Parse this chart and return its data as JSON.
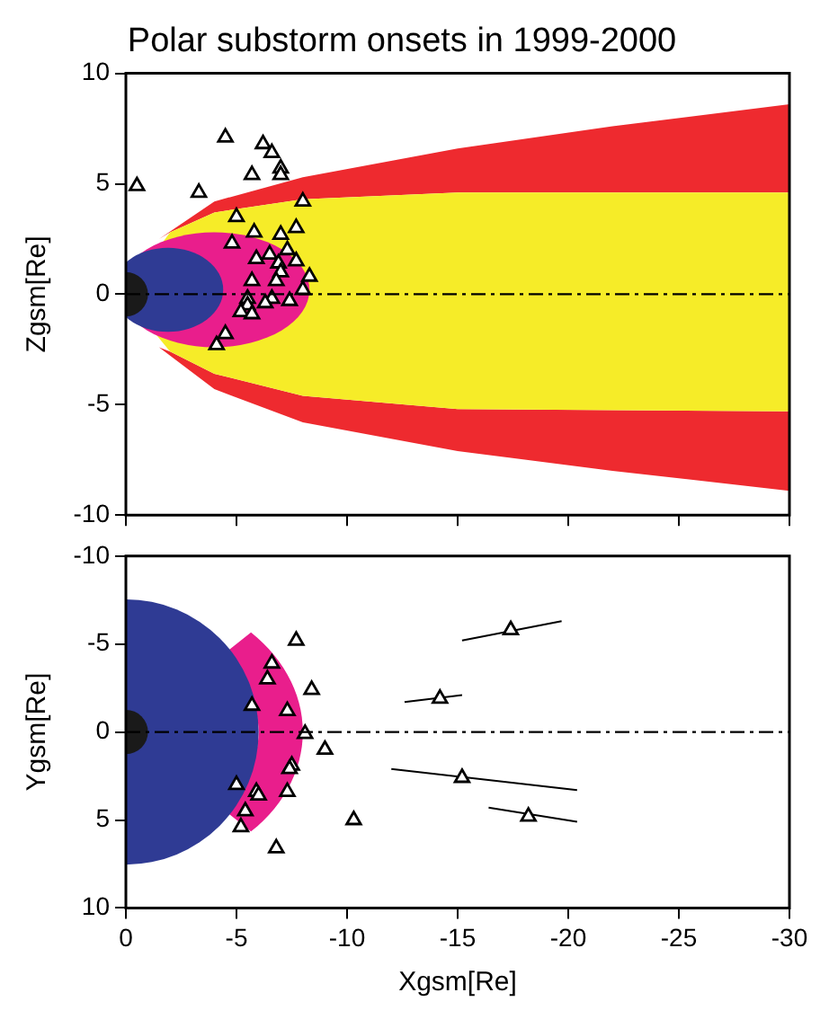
{
  "chart_data": [
    {
      "type": "scatter",
      "title": "Polar substorm onsets in 1999-2000",
      "ylabel": "Zgsm[Re]",
      "color": "#000000",
      "marker": "triangle",
      "x": [
        -0.5,
        -4.5,
        -6.2,
        -6.6,
        -7.0,
        -7.0,
        -5.7,
        -3.3,
        -8.0,
        -5.0,
        -5.8,
        -7.7,
        -7.0,
        -4.8,
        -7.3,
        -6.5,
        -5.9,
        -6.9,
        -7.7,
        -7.0,
        -8.3,
        -6.8,
        -5.7,
        -8.0,
        -6.6,
        -7.4,
        -6.3,
        -5.5,
        -5.5,
        -5.2,
        -5.7,
        -4.5,
        -4.1
      ],
      "values": [
        4.9,
        7.1,
        6.8,
        6.4,
        5.7,
        5.4,
        5.4,
        4.6,
        4.2,
        3.5,
        2.8,
        3.0,
        2.7,
        2.3,
        2.0,
        1.8,
        1.6,
        1.4,
        1.5,
        1.0,
        0.8,
        0.6,
        0.6,
        0.2,
        -0.2,
        -0.3,
        -0.4,
        -0.2,
        -0.5,
        -0.8,
        -0.9,
        -1.8,
        -2.3
      ],
      "xlim": [
        0,
        -30
      ],
      "xticks": [
        0,
        -5,
        -10,
        -15,
        -20,
        -25,
        -30
      ],
      "ylim": [
        -10,
        10
      ],
      "yticks": [
        -10,
        -5,
        0,
        5,
        10
      ],
      "tick_labels": "y",
      "ref_lines": [
        {
          "axis": "y",
          "value": 0
        }
      ]
    },
    {
      "type": "scatter",
      "xlabel": "Xgsm[Re]",
      "ylabel": "Ygsm[Re]",
      "marker": "triangle",
      "series": [
        {
          "type": "scatter",
          "color": "#000000",
          "x": [
            -7.7,
            -6.6,
            -6.4,
            -8.4,
            -5.7,
            -7.3,
            -8.1,
            -9.0,
            -7.5,
            -7.4,
            -5.0,
            -5.9,
            -6.0,
            -7.3,
            -5.4,
            -5.2,
            -6.8,
            -10.3,
            -14.2,
            -17.4,
            -15.2,
            -18.2
          ],
          "values": [
            -5.2,
            -3.9,
            -3.0,
            -2.4,
            -1.5,
            -1.2,
            0.1,
            1.0,
            1.9,
            2.1,
            3.0,
            3.4,
            3.6,
            3.4,
            4.5,
            5.4,
            6.6,
            5.0,
            -1.9,
            -5.8,
            2.6,
            4.8
          ]
        },
        {
          "type": "line",
          "color": "#000000",
          "marker": "none",
          "x": [
            -15.2,
            -19.7
          ],
          "values": [
            -5.2,
            -6.3
          ]
        },
        {
          "type": "line",
          "color": "#000000",
          "marker": "none",
          "x": [
            -12.6,
            -15.2
          ],
          "values": [
            -1.7,
            -2.1
          ]
        },
        {
          "type": "line",
          "color": "#000000",
          "marker": "none",
          "x": [
            -12.0,
            -20.4
          ],
          "values": [
            2.1,
            3.3
          ]
        },
        {
          "type": "line",
          "color": "#000000",
          "marker": "none",
          "x": [
            -16.4,
            -20.4
          ],
          "values": [
            4.3,
            5.1
          ]
        }
      ],
      "xlim": [
        0,
        -30
      ],
      "xticks": [
        0,
        -5,
        -10,
        -15,
        -20,
        -25,
        -30
      ],
      "ylim": [
        10,
        -10
      ],
      "yticks": [
        -10,
        -5,
        0,
        5,
        10
      ],
      "ref_lines": [
        {
          "axis": "y",
          "value": 0
        }
      ]
    }
  ]
}
